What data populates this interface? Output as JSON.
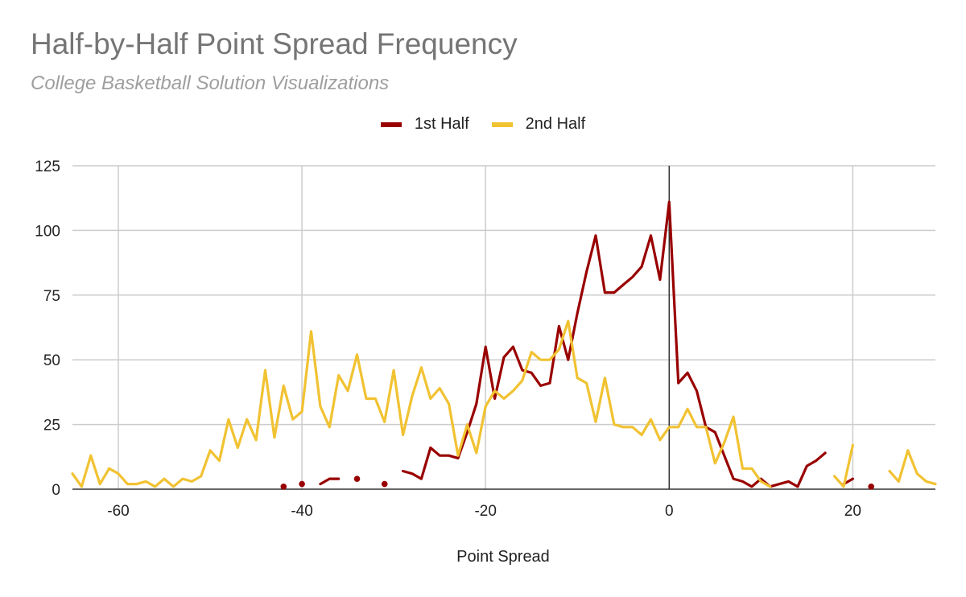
{
  "chart_data": {
    "type": "line",
    "title": "Half-by-Half Point Spread Frequency",
    "subtitle": "College Basketball Solution Visualizations",
    "xlabel": "Point Spread",
    "ylabel": "",
    "xlim": [
      -65,
      29
    ],
    "ylim": [
      0,
      125
    ],
    "xticks": [
      -60,
      -40,
      -20,
      0,
      20
    ],
    "yticks": [
      0,
      25,
      50,
      75,
      100,
      125
    ],
    "grid": true,
    "legend_position": "top",
    "series": [
      {
        "name": "1st Half",
        "color": "#990000",
        "points": [
          [
            -42,
            1
          ],
          [
            -40,
            2
          ],
          [
            -38,
            2
          ],
          [
            -37,
            4
          ],
          [
            -36,
            4
          ],
          [
            -34,
            4
          ],
          [
            -31,
            2
          ],
          [
            -29,
            7
          ],
          [
            -28,
            6
          ],
          [
            -27,
            4
          ],
          [
            -26,
            16
          ],
          [
            -25,
            13
          ],
          [
            -24,
            13
          ],
          [
            -23,
            12
          ],
          [
            -22,
            22
          ],
          [
            -21,
            33
          ],
          [
            -20,
            55
          ],
          [
            -19,
            35
          ],
          [
            -18,
            51
          ],
          [
            -17,
            55
          ],
          [
            -16,
            46
          ],
          [
            -15,
            45
          ],
          [
            -14,
            40
          ],
          [
            -13,
            41
          ],
          [
            -12,
            63
          ],
          [
            -11,
            50
          ],
          [
            -10,
            68
          ],
          [
            -9,
            84
          ],
          [
            -8,
            98
          ],
          [
            -7,
            76
          ],
          [
            -6,
            76
          ],
          [
            -5,
            79
          ],
          [
            -4,
            82
          ],
          [
            -3,
            86
          ],
          [
            -2,
            98
          ],
          [
            -1,
            81
          ],
          [
            0,
            111
          ],
          [
            1,
            41
          ],
          [
            2,
            45
          ],
          [
            3,
            38
          ],
          [
            4,
            24
          ],
          [
            5,
            22
          ],
          [
            6,
            13
          ],
          [
            7,
            4
          ],
          [
            8,
            3
          ],
          [
            9,
            1
          ],
          [
            10,
            4
          ],
          [
            11,
            1
          ],
          [
            12,
            2
          ],
          [
            13,
            3
          ],
          [
            14,
            1
          ],
          [
            15,
            9
          ],
          [
            16,
            11
          ],
          [
            17,
            14
          ],
          [
            19,
            2
          ],
          [
            20,
            4
          ],
          [
            22,
            1
          ]
        ]
      },
      {
        "name": "2nd Half",
        "color": "#f1c232",
        "points": [
          [
            -65,
            6
          ],
          [
            -64,
            1
          ],
          [
            -63,
            13
          ],
          [
            -62,
            2
          ],
          [
            -61,
            8
          ],
          [
            -60,
            6
          ],
          [
            -59,
            2
          ],
          [
            -58,
            2
          ],
          [
            -57,
            3
          ],
          [
            -56,
            1
          ],
          [
            -55,
            4
          ],
          [
            -54,
            1
          ],
          [
            -53,
            4
          ],
          [
            -52,
            3
          ],
          [
            -51,
            5
          ],
          [
            -50,
            15
          ],
          [
            -49,
            11
          ],
          [
            -48,
            27
          ],
          [
            -47,
            16
          ],
          [
            -46,
            27
          ],
          [
            -45,
            19
          ],
          [
            -44,
            46
          ],
          [
            -43,
            20
          ],
          [
            -42,
            40
          ],
          [
            -41,
            27
          ],
          [
            -40,
            30
          ],
          [
            -39,
            61
          ],
          [
            -38,
            32
          ],
          [
            -37,
            24
          ],
          [
            -36,
            44
          ],
          [
            -35,
            38
          ],
          [
            -34,
            52
          ],
          [
            -33,
            35
          ],
          [
            -32,
            35
          ],
          [
            -31,
            26
          ],
          [
            -30,
            46
          ],
          [
            -29,
            21
          ],
          [
            -28,
            36
          ],
          [
            -27,
            47
          ],
          [
            -26,
            35
          ],
          [
            -25,
            39
          ],
          [
            -24,
            33
          ],
          [
            -23,
            13
          ],
          [
            -22,
            25
          ],
          [
            -21,
            14
          ],
          [
            -20,
            32
          ],
          [
            -19,
            38
          ],
          [
            -18,
            35
          ],
          [
            -17,
            38
          ],
          [
            -16,
            42
          ],
          [
            -15,
            53
          ],
          [
            -14,
            50
          ],
          [
            -13,
            50
          ],
          [
            -12,
            54
          ],
          [
            -11,
            65
          ],
          [
            -10,
            43
          ],
          [
            -9,
            41
          ],
          [
            -8,
            26
          ],
          [
            -7,
            43
          ],
          [
            -6,
            25
          ],
          [
            -5,
            24
          ],
          [
            -4,
            24
          ],
          [
            -3,
            21
          ],
          [
            -2,
            27
          ],
          [
            -1,
            19
          ],
          [
            0,
            24
          ],
          [
            1,
            24
          ],
          [
            2,
            31
          ],
          [
            3,
            24
          ],
          [
            4,
            24
          ],
          [
            5,
            10
          ],
          [
            6,
            18
          ],
          [
            7,
            28
          ],
          [
            8,
            8
          ],
          [
            9,
            8
          ],
          [
            10,
            3
          ],
          [
            11,
            1
          ],
          [
            18,
            5
          ],
          [
            19,
            1
          ],
          [
            20,
            17
          ],
          [
            24,
            7
          ],
          [
            25,
            3
          ],
          [
            26,
            15
          ],
          [
            27,
            6
          ],
          [
            28,
            3
          ],
          [
            29,
            2
          ]
        ]
      }
    ]
  }
}
